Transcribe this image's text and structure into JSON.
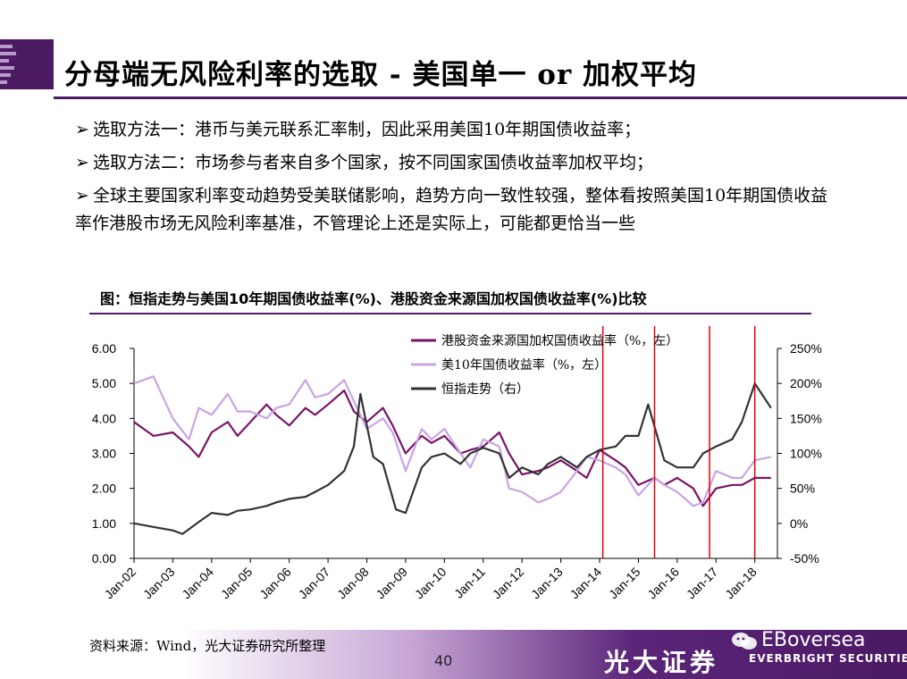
{
  "title": "分母端无风险利率的选取 - 美国单一 or 加权平均",
  "bullets": [
    "选取方法一：港币与美元联系汇率制，因此采用美国10年期国债收益率；",
    "选取方法二：市场参与者来自多个国家，按不同国家国债收益率加权平均；",
    "全球主要国家利率变动趋势受美联储影响，趋势方向一致性较强，整体看按照美国10年期国债收益率作港股市场无风险利率基准，不管理论上还是实际上，可能都更恰当一些"
  ],
  "bullet_marker": "➢",
  "chart_title": "图：恒指走势与美国10年期国债收益率(%)、港股资金来源国加权国债收益率(%)比较",
  "source_note": "资料来源：Wind，光大证券研究所整理",
  "page_number": "40",
  "brand": {
    "cn": "光大证券",
    "en": "EVERBRIGHT SECURITIES",
    "account": "EBoversea"
  },
  "chart_data": {
    "type": "line",
    "x_tick_labels": [
      "Jan-02",
      "Jan-03",
      "Jan-04",
      "Jan-05",
      "Jan-06",
      "Jan-07",
      "Jan-08",
      "Jan-09",
      "Jan-10",
      "Jan-11",
      "Jan-12",
      "Jan-13",
      "Jan-14",
      "Jan-15",
      "Jan-16",
      "Jan-17",
      "Jan-18"
    ],
    "y_left": {
      "ticks": [
        "0.00",
        "1.00",
        "2.00",
        "3.00",
        "4.00",
        "5.00",
        "6.00"
      ],
      "range": [
        0,
        6
      ]
    },
    "y_right": {
      "ticks": [
        "-50%",
        "0%",
        "50%",
        "100%",
        "150%",
        "200%",
        "250%"
      ],
      "range": [
        -50,
        250
      ]
    },
    "legend": [
      {
        "name": "港股资金来源国加权国债收益率（%，左）",
        "color": "#7b1466"
      },
      {
        "name": "美10年国债收益率（%，左）",
        "color": "#c9a4e6"
      },
      {
        "name": "恒指走势（右）",
        "color": "#333333"
      }
    ],
    "legend_position": "top-center",
    "grid": false,
    "series": [
      {
        "name": "港股资金来源国加权国债收益率（%，左）",
        "axis": "left",
        "color": "#7b1466",
        "x": [
          "2002-01",
          "2002-07",
          "2003-01",
          "2003-06",
          "2003-09",
          "2004-01",
          "2004-06",
          "2004-09",
          "2005-01",
          "2005-06",
          "2005-09",
          "2006-01",
          "2006-06",
          "2006-09",
          "2007-01",
          "2007-06",
          "2007-09",
          "2008-01",
          "2008-06",
          "2008-09",
          "2009-01",
          "2009-06",
          "2009-09",
          "2010-01",
          "2010-06",
          "2010-09",
          "2011-01",
          "2011-06",
          "2011-09",
          "2012-01",
          "2012-06",
          "2012-09",
          "2013-01",
          "2013-06",
          "2013-09",
          "2014-01",
          "2014-06",
          "2014-09",
          "2015-01",
          "2015-06",
          "2015-09",
          "2016-01",
          "2016-06",
          "2016-09",
          "2017-01",
          "2017-06",
          "2017-09",
          "2018-01",
          "2018-06"
        ],
        "y": [
          3.9,
          3.5,
          3.6,
          3.2,
          2.9,
          3.6,
          3.9,
          3.5,
          3.9,
          4.4,
          4.1,
          3.8,
          4.3,
          4.1,
          4.4,
          4.8,
          4.2,
          3.9,
          4.3,
          3.8,
          3.0,
          3.5,
          3.3,
          3.5,
          3.0,
          3.1,
          3.2,
          3.6,
          3.0,
          2.4,
          2.5,
          2.6,
          2.8,
          2.5,
          2.3,
          3.1,
          2.8,
          2.6,
          2.1,
          2.3,
          2.1,
          2.3,
          2.0,
          1.5,
          2.0,
          2.1,
          2.1,
          2.3,
          2.3
        ]
      },
      {
        "name": "美10年国债收益率（%，左）",
        "axis": "left",
        "color": "#c9a4e6",
        "x": [
          "2002-01",
          "2002-07",
          "2003-01",
          "2003-06",
          "2003-09",
          "2004-01",
          "2004-06",
          "2004-09",
          "2005-01",
          "2005-06",
          "2005-09",
          "2006-01",
          "2006-06",
          "2006-09",
          "2007-01",
          "2007-06",
          "2007-09",
          "2008-01",
          "2008-06",
          "2008-09",
          "2009-01",
          "2009-06",
          "2009-09",
          "2010-01",
          "2010-06",
          "2010-09",
          "2011-01",
          "2011-06",
          "2011-09",
          "2012-01",
          "2012-06",
          "2012-09",
          "2013-01",
          "2013-06",
          "2013-09",
          "2014-01",
          "2014-06",
          "2014-09",
          "2015-01",
          "2015-06",
          "2015-09",
          "2016-01",
          "2016-06",
          "2016-09",
          "2017-01",
          "2017-06",
          "2017-09",
          "2018-01",
          "2018-06"
        ],
        "y": [
          5.0,
          5.2,
          4.0,
          3.4,
          4.3,
          4.1,
          4.7,
          4.2,
          4.2,
          4.0,
          4.3,
          4.4,
          5.1,
          4.6,
          4.7,
          5.1,
          4.5,
          3.7,
          4.0,
          3.6,
          2.5,
          3.7,
          3.4,
          3.7,
          3.0,
          2.6,
          3.4,
          3.2,
          2.0,
          1.9,
          1.6,
          1.7,
          1.9,
          2.5,
          2.9,
          2.8,
          2.6,
          2.4,
          1.8,
          2.3,
          2.1,
          1.9,
          1.5,
          1.6,
          2.5,
          2.3,
          2.3,
          2.8,
          2.9
        ]
      },
      {
        "name": "恒指走势（右）",
        "axis": "right",
        "color": "#333333",
        "x": [
          "2002-01",
          "2002-07",
          "2003-01",
          "2003-04",
          "2003-09",
          "2004-01",
          "2004-06",
          "2004-09",
          "2005-01",
          "2005-06",
          "2005-09",
          "2006-01",
          "2006-06",
          "2006-09",
          "2007-01",
          "2007-06",
          "2007-09",
          "2007-11",
          "2008-03",
          "2008-06",
          "2008-10",
          "2009-01",
          "2009-06",
          "2009-09",
          "2010-01",
          "2010-06",
          "2010-09",
          "2011-01",
          "2011-06",
          "2011-09",
          "2012-01",
          "2012-06",
          "2012-09",
          "2013-01",
          "2013-06",
          "2013-09",
          "2014-01",
          "2014-06",
          "2014-09",
          "2015-01",
          "2015-04",
          "2015-09",
          "2016-01",
          "2016-06",
          "2016-09",
          "2017-01",
          "2017-06",
          "2017-09",
          "2018-01",
          "2018-06"
        ],
        "y": [
          0,
          -5,
          -10,
          -15,
          2,
          15,
          12,
          18,
          20,
          25,
          30,
          35,
          38,
          45,
          55,
          75,
          110,
          185,
          95,
          85,
          20,
          15,
          80,
          95,
          100,
          85,
          100,
          108,
          100,
          65,
          80,
          70,
          85,
          95,
          80,
          95,
          105,
          110,
          125,
          125,
          170,
          90,
          80,
          80,
          100,
          110,
          120,
          145,
          200,
          165
        ]
      }
    ],
    "annotations": {
      "vertical_lines_color": "#d9000d",
      "vertical_lines_x": [
        "2014-02",
        "2015-06",
        "2016-11",
        "2018-01"
      ]
    }
  }
}
